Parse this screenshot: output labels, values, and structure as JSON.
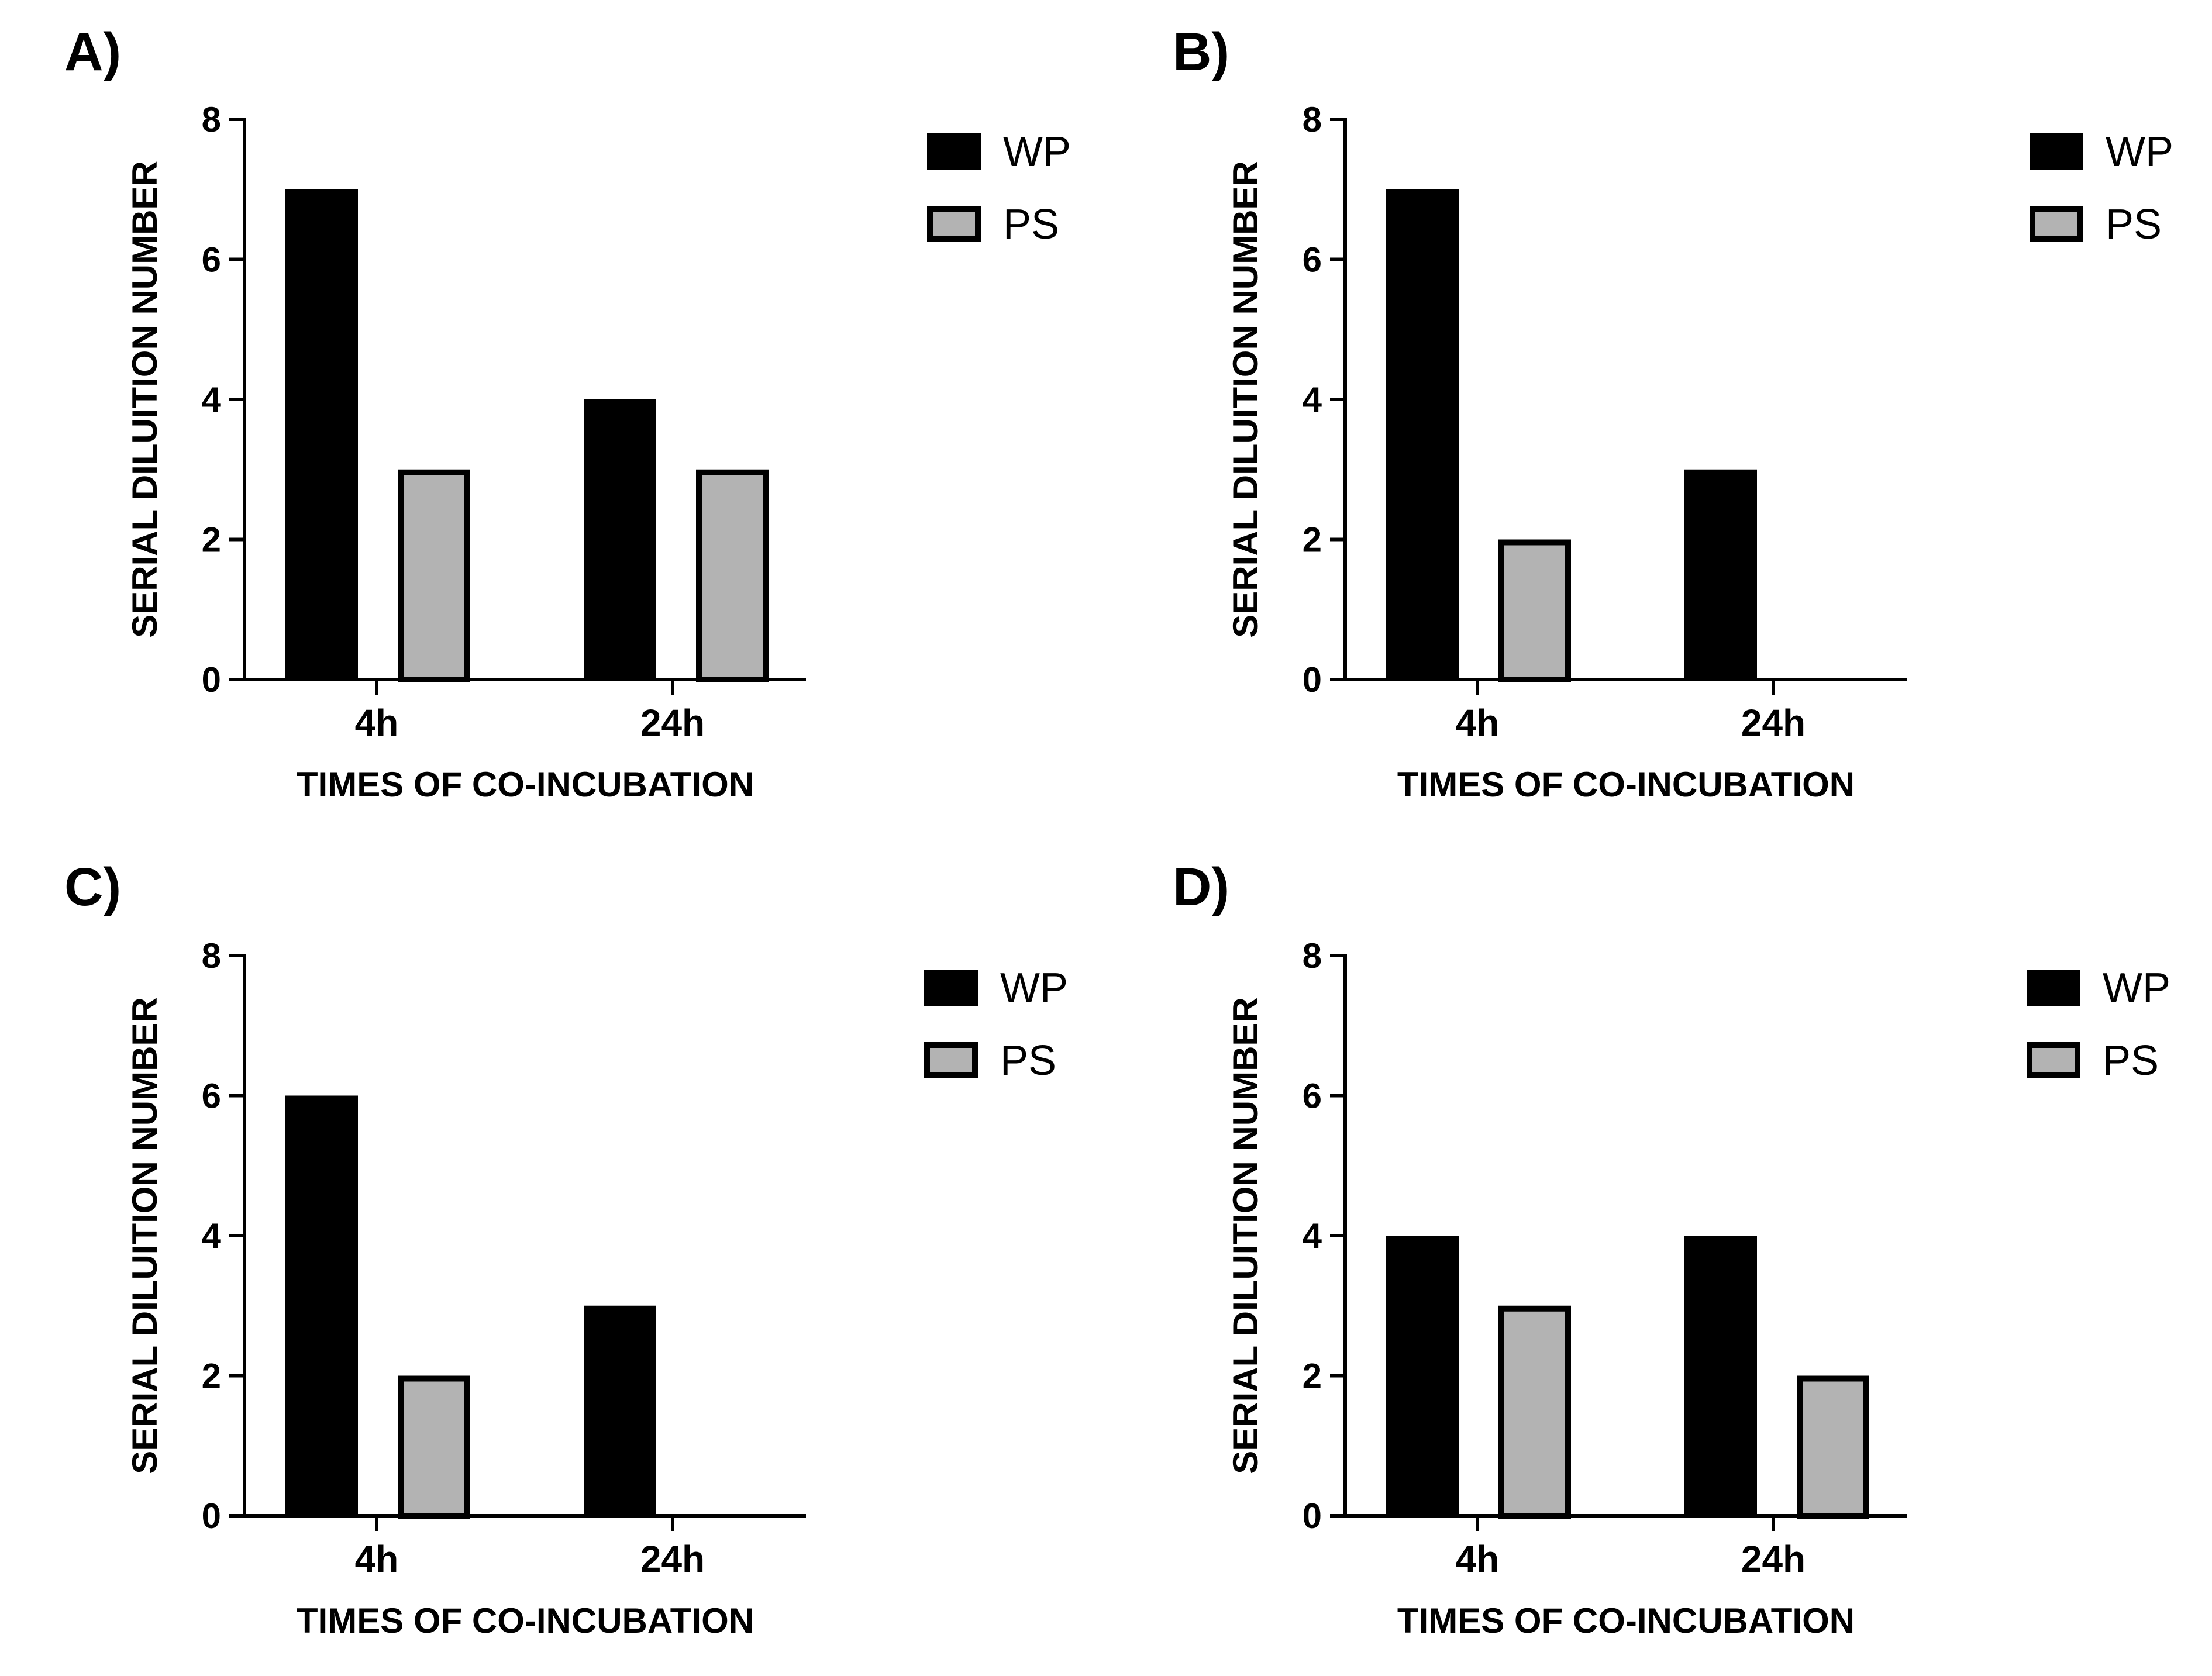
{
  "figure_title": "",
  "legend_colors": {
    "WP": "#000000",
    "PS": "#b3b3b3"
  },
  "chart_data": [
    {
      "panel": "A)",
      "type": "bar",
      "categories": [
        "4h",
        "24h"
      ],
      "series": [
        {
          "name": "WP",
          "values": [
            7,
            4
          ]
        },
        {
          "name": "PS",
          "values": [
            3,
            3
          ]
        }
      ],
      "xlabel": "TIMES OF CO-INCUBATION",
      "ylabel": "SERIAL DILUITION NUMBER",
      "ylim": [
        0,
        8
      ],
      "yticks": [
        0,
        2,
        4,
        6,
        8
      ],
      "legend": [
        "WP",
        "PS"
      ],
      "legend_position": "top-right"
    },
    {
      "panel": "B)",
      "type": "bar",
      "categories": [
        "4h",
        "24h"
      ],
      "series": [
        {
          "name": "WP",
          "values": [
            7,
            3
          ]
        },
        {
          "name": "PS",
          "values": [
            2,
            0
          ]
        }
      ],
      "xlabel": "TIMES OF CO-INCUBATION",
      "ylabel": "SERIAL DILUITION NUMBER",
      "ylim": [
        0,
        8
      ],
      "yticks": [
        0,
        2,
        4,
        6,
        8
      ],
      "legend": [
        "WP",
        "PS"
      ],
      "legend_position": "top-right"
    },
    {
      "panel": "C)",
      "type": "bar",
      "categories": [
        "4h",
        "24h"
      ],
      "series": [
        {
          "name": "WP",
          "values": [
            6,
            3
          ]
        },
        {
          "name": "PS",
          "values": [
            2,
            0
          ]
        }
      ],
      "xlabel": "TIMES OF CO-INCUBATION",
      "ylabel": "SERIAL DILUITION NUMBER",
      "ylim": [
        0,
        8
      ],
      "yticks": [
        0,
        2,
        4,
        6,
        8
      ],
      "legend": [
        "WP",
        "PS"
      ],
      "legend_position": "top-right"
    },
    {
      "panel": "D)",
      "type": "bar",
      "categories": [
        "4h",
        "24h"
      ],
      "series": [
        {
          "name": "WP",
          "values": [
            4,
            4
          ]
        },
        {
          "name": "PS",
          "values": [
            3,
            2
          ]
        }
      ],
      "xlabel": "TIMES OF CO-INCUBATION",
      "ylabel": "SERIAL DILUITION NUMBER",
      "ylim": [
        0,
        8
      ],
      "yticks": [
        0,
        2,
        4,
        6,
        8
      ],
      "legend": [
        "WP",
        "PS"
      ],
      "legend_position": "top-right"
    }
  ]
}
